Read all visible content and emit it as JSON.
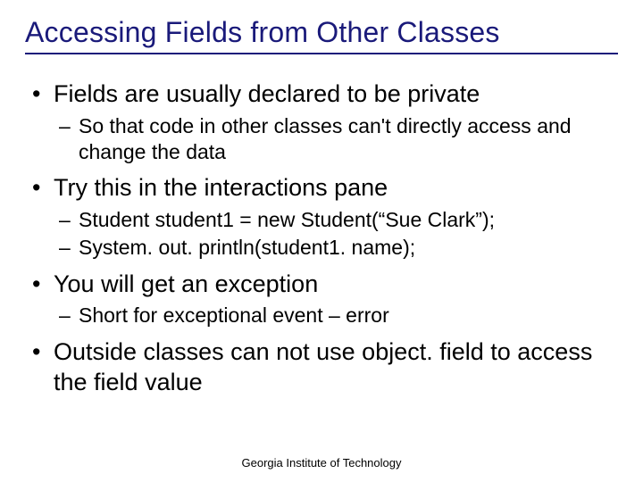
{
  "title": "Accessing Fields from Other Classes",
  "bullets": [
    {
      "text": "Fields are usually declared to be private",
      "subs": [
        "So that code in other classes can't directly access and change the data"
      ]
    },
    {
      "text": "Try this in the interactions pane",
      "subs": [
        "Student student1 = new Student(“Sue Clark”);",
        "System. out. println(student1. name);"
      ]
    },
    {
      "text": "You will get an exception",
      "subs": [
        "Short for exceptional event – error"
      ]
    },
    {
      "text": "Outside classes can not use object. field to access the field value",
      "subs": []
    }
  ],
  "footer": "Georgia Institute of Technology",
  "colors": {
    "title": "#1a1a7a",
    "text": "#000000",
    "background": "#ffffff"
  },
  "typography": {
    "title_fontsize": 32,
    "bullet_fontsize": 27,
    "sub_fontsize": 23,
    "footer_fontsize": 13,
    "font_family": "Arial"
  }
}
